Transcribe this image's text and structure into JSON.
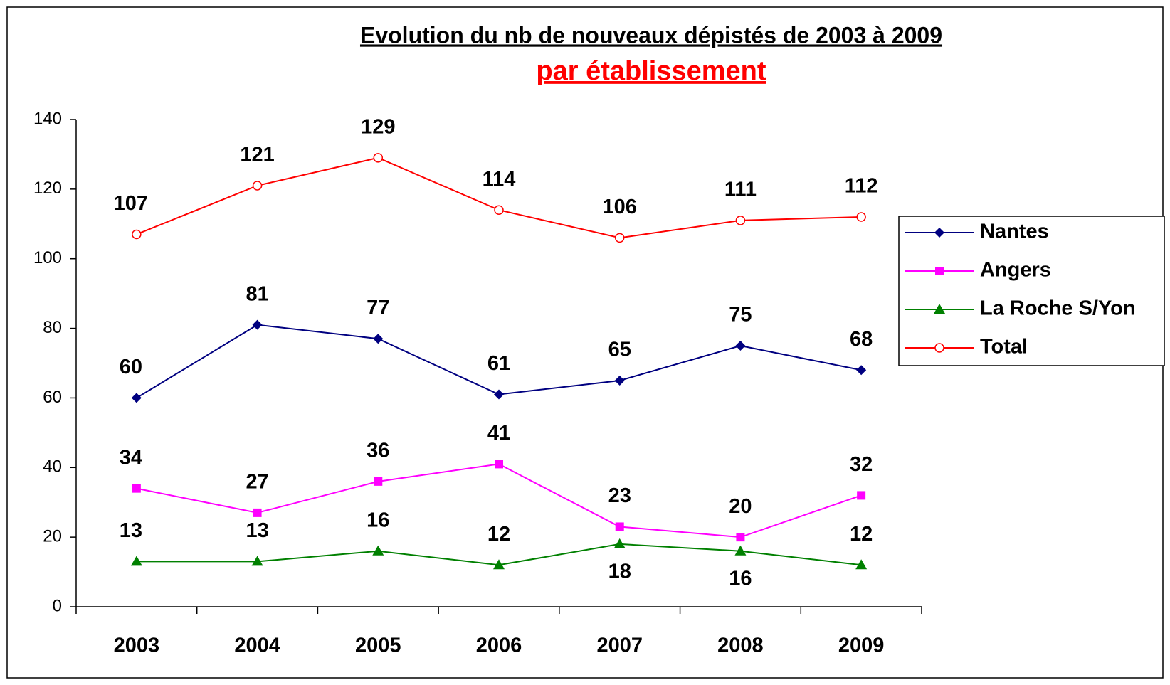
{
  "chart_data": {
    "type": "line",
    "title": "Evolution du nb de nouveaux dépistés de 2003 à 2009",
    "subtitle": "par établissement",
    "categories": [
      "2003",
      "2004",
      "2005",
      "2006",
      "2007",
      "2008",
      "2009"
    ],
    "series": [
      {
        "name": "Nantes",
        "color": "#000080",
        "marker": "diamond",
        "values": [
          60,
          81,
          77,
          61,
          65,
          75,
          68
        ]
      },
      {
        "name": "Angers",
        "color": "#ff00ff",
        "marker": "square",
        "values": [
          34,
          27,
          36,
          41,
          23,
          20,
          32
        ]
      },
      {
        "name": "La Roche S/Yon",
        "color": "#008000",
        "marker": "triangle",
        "values": [
          13,
          13,
          16,
          12,
          18,
          16,
          12
        ]
      },
      {
        "name": "Total",
        "color": "#ff0000",
        "marker": "circle",
        "values": [
          107,
          121,
          129,
          114,
          106,
          111,
          112
        ]
      }
    ],
    "ylim": [
      0,
      140
    ],
    "yticks": [
      0,
      20,
      40,
      60,
      80,
      100,
      120,
      140
    ],
    "legend": "right"
  }
}
